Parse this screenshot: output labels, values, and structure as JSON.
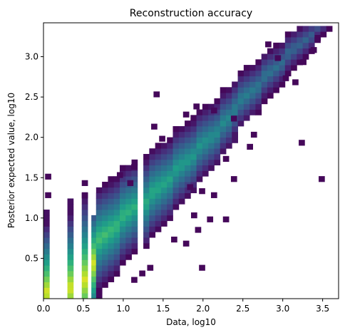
{
  "chart_data": {
    "type": "heatmap",
    "title": "Reconstruction accuracy",
    "xlabel": "Data, log10",
    "ylabel": "Posterior expected value, log10",
    "xlim": [
      0.0,
      3.7
    ],
    "ylim": [
      0.0,
      3.42
    ],
    "xticks": [
      0.0,
      0.5,
      1.0,
      1.5,
      2.0,
      2.5,
      3.0,
      3.5
    ],
    "xtick_labels": [
      "0.0",
      "0.5",
      "1.0",
      "1.5",
      "2.0",
      "2.5",
      "3.0",
      "3.5"
    ],
    "yticks": [
      0.5,
      1.0,
      1.5,
      2.0,
      2.5,
      3.0
    ],
    "ytick_labels": [
      "0.5",
      "1.0",
      "1.5",
      "2.0",
      "2.5",
      "3.0"
    ],
    "grid": false,
    "colormap": "viridis",
    "bin_width_x": 0.074,
    "bin_width_y": 0.069,
    "columns": [
      {
        "x": 0.0,
        "ymax": 1.1,
        "peak": 0.05
      },
      {
        "x": 0.3,
        "ymax": 1.18,
        "peak": 0.1
      },
      {
        "x": 0.48,
        "ymax": 1.3,
        "peak": 0.2
      },
      {
        "x": 0.6,
        "ymax": 1.0,
        "peak": 0.4
      }
    ],
    "trend": {
      "intercept": 0.0,
      "slope": 0.97
    },
    "scatter_cells": [
      [
        0.02,
        1.48
      ],
      [
        0.02,
        1.25
      ],
      [
        0.48,
        1.4
      ],
      [
        0.48,
        1.25
      ],
      [
        1.88,
        2.35
      ],
      [
        2.1,
        2.3
      ],
      [
        1.75,
        2.25
      ],
      [
        1.35,
        2.1
      ],
      [
        2.35,
        2.2
      ],
      [
        1.45,
        1.95
      ],
      [
        2.6,
        2.0
      ],
      [
        2.55,
        1.85
      ],
      [
        2.25,
        1.7
      ],
      [
        2.35,
        1.45
      ],
      [
        1.1,
        1.6
      ],
      [
        0.92,
        1.5
      ],
      [
        1.05,
        1.4
      ],
      [
        1.8,
        1.35
      ],
      [
        1.95,
        1.3
      ],
      [
        2.1,
        1.25
      ],
      [
        1.85,
        1.0
      ],
      [
        2.05,
        0.95
      ],
      [
        2.25,
        0.95
      ],
      [
        1.6,
        0.7
      ],
      [
        1.75,
        0.65
      ],
      [
        1.9,
        0.82
      ],
      [
        1.95,
        0.35
      ],
      [
        1.2,
        0.28
      ],
      [
        1.1,
        0.2
      ],
      [
        1.38,
        2.5
      ],
      [
        3.2,
        1.9
      ],
      [
        3.45,
        1.45
      ],
      [
        2.78,
        3.12
      ],
      [
        2.9,
        2.95
      ],
      [
        3.0,
        2.7
      ],
      [
        3.12,
        2.65
      ],
      [
        3.22,
        2.9
      ],
      [
        3.4,
        3.2
      ],
      [
        3.6,
        3.38
      ],
      [
        3.65,
        3.38
      ],
      [
        3.35,
        3.05
      ],
      [
        1.3,
        0.35
      ]
    ]
  }
}
